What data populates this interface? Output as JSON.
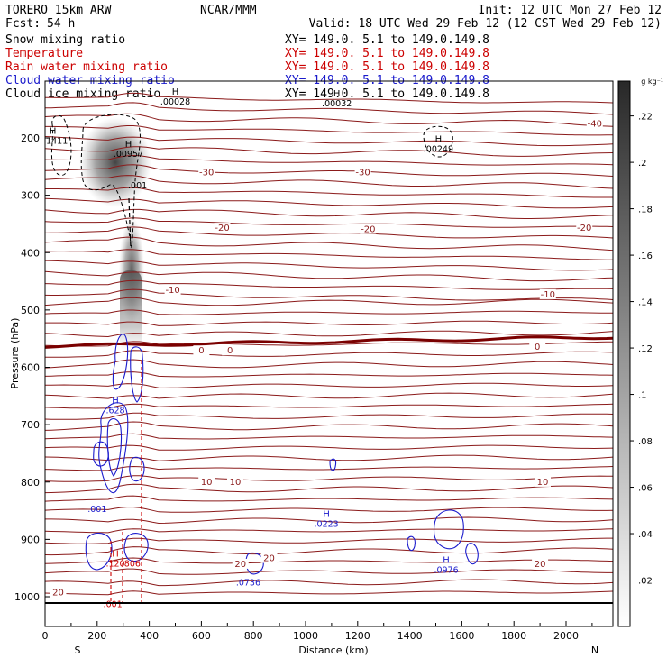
{
  "header": {
    "model": "TORERO  15km ARW",
    "org": "NCAR/MMM",
    "init": "Init: 12 UTC Mon 27 Feb 12",
    "fcst_label": "Fcst:",
    "fcst_value": "54 h",
    "valid": "Valid: 18 UTC Wed 29 Feb 12 (12 CST Wed 29 Feb 12)"
  },
  "fields": [
    {
      "name": "Snow mixing ratio",
      "color": "#000000",
      "xy": "XY= 149.0.  5.1 to 149.0.149.8"
    },
    {
      "name": "Temperature",
      "color": "#cc0000",
      "xy": "XY= 149.0.  5.1 to 149.0.149.8"
    },
    {
      "name": "Rain water mixing ratio",
      "color": "#cc0000",
      "xy": "XY= 149.0.  5.1 to 149.0.149.8"
    },
    {
      "name": "Cloud water mixing ratio",
      "color": "#1a1acc",
      "xy": "XY= 149.0.  5.1 to 149.0.149.8"
    },
    {
      "name": "Cloud ice mixing ratio",
      "color": "#000000",
      "xy": "XY= 149.0.  5.1 to 149.0.149.8"
    }
  ],
  "chart_data": {
    "type": "cross-section contour",
    "xlabel": "Distance (km)",
    "ylabel": "Pressure (hPa)",
    "xlim": [
      0,
      2180
    ],
    "ylim": [
      1050,
      100
    ],
    "x_ticks": [
      0,
      200,
      400,
      600,
      800,
      1000,
      1200,
      1400,
      1600,
      1800,
      2000
    ],
    "y_ticks": [
      200,
      300,
      400,
      500,
      600,
      700,
      800,
      900,
      1000
    ],
    "x_end_labels": {
      "left": "S",
      "right": "N"
    },
    "grid": false,
    "temperature_isotherms": [
      {
        "label": "-40",
        "x": 2110,
        "p": 180
      },
      {
        "label": "-30",
        "x": 620,
        "p": 265
      },
      {
        "label": "-30",
        "x": 1220,
        "p": 265
      },
      {
        "label": "-20",
        "x": 680,
        "p": 362
      },
      {
        "label": "-20",
        "x": 1240,
        "p": 364
      },
      {
        "label": "-20",
        "x": 2070,
        "p": 362
      },
      {
        "label": "-10",
        "x": 490,
        "p": 470
      },
      {
        "label": "-10",
        "x": 1930,
        "p": 478
      },
      {
        "label": "0",
        "x": 600,
        "p": 576
      },
      {
        "label": "0",
        "x": 710,
        "p": 576
      },
      {
        "label": "0",
        "x": 1890,
        "p": 569
      },
      {
        "label": "10",
        "x": 620,
        "p": 805
      },
      {
        "label": "10",
        "x": 730,
        "p": 805
      },
      {
        "label": "10",
        "x": 1910,
        "p": 805
      },
      {
        "label": "20",
        "x": 50,
        "p": 998
      },
      {
        "label": "20",
        "x": 750,
        "p": 948
      },
      {
        "label": "20",
        "x": 860,
        "p": 938
      },
      {
        "label": "20",
        "x": 1900,
        "p": 948
      }
    ],
    "extrema": [
      {
        "kind": "H",
        "value": ".01411",
        "x": 30,
        "p": 210,
        "color": "#000000"
      },
      {
        "kind": "H",
        "value": ".00957",
        "x": 320,
        "p": 233,
        "color": "#000000"
      },
      {
        "kind": "",
        "value": ".001",
        "x": 355,
        "p": 288,
        "color": "#000000"
      },
      {
        "kind": "H",
        "value": ".00028",
        "x": 500,
        "p": 142,
        "color": "#000000"
      },
      {
        "kind": "H",
        "value": ".00032",
        "x": 1120,
        "p": 145,
        "color": "#000000"
      },
      {
        "kind": "H",
        "value": ".00249",
        "x": 1510,
        "p": 224,
        "color": "#000000"
      },
      {
        "kind": "H",
        "value": ".628",
        "x": 270,
        "p": 680,
        "color": "#1a1acc"
      },
      {
        "kind": "",
        "value": ".001",
        "x": 200,
        "p": 852,
        "color": "#1a1acc"
      },
      {
        "kind": "H",
        "value": ".0223",
        "x": 1080,
        "p": 878,
        "color": "#1a1acc"
      },
      {
        "kind": "H",
        "value": ".0976",
        "x": 1540,
        "p": 958,
        "color": "#1a1acc"
      },
      {
        "kind": "",
        "value": ".0736",
        "x": 780,
        "p": 980,
        "color": "#1a1acc"
      },
      {
        "kind": "H",
        "value": ".120",
        "x": 270,
        "p": 947,
        "color": "#cc0000"
      },
      {
        "kind": "",
        "value": ".806",
        "x": 330,
        "p": 947,
        "color": "#cc0000"
      },
      {
        "kind": "",
        "value": ".001",
        "x": 260,
        "p": 1018,
        "color": "#cc0000"
      }
    ],
    "colorbar": {
      "unit": "g kg⁻¹",
      "ticks": [
        ".02",
        ".04",
        ".06",
        ".08",
        ".1",
        ".12",
        ".14",
        ".16",
        ".18",
        ".2",
        ".22"
      ],
      "max": 0.235
    }
  }
}
